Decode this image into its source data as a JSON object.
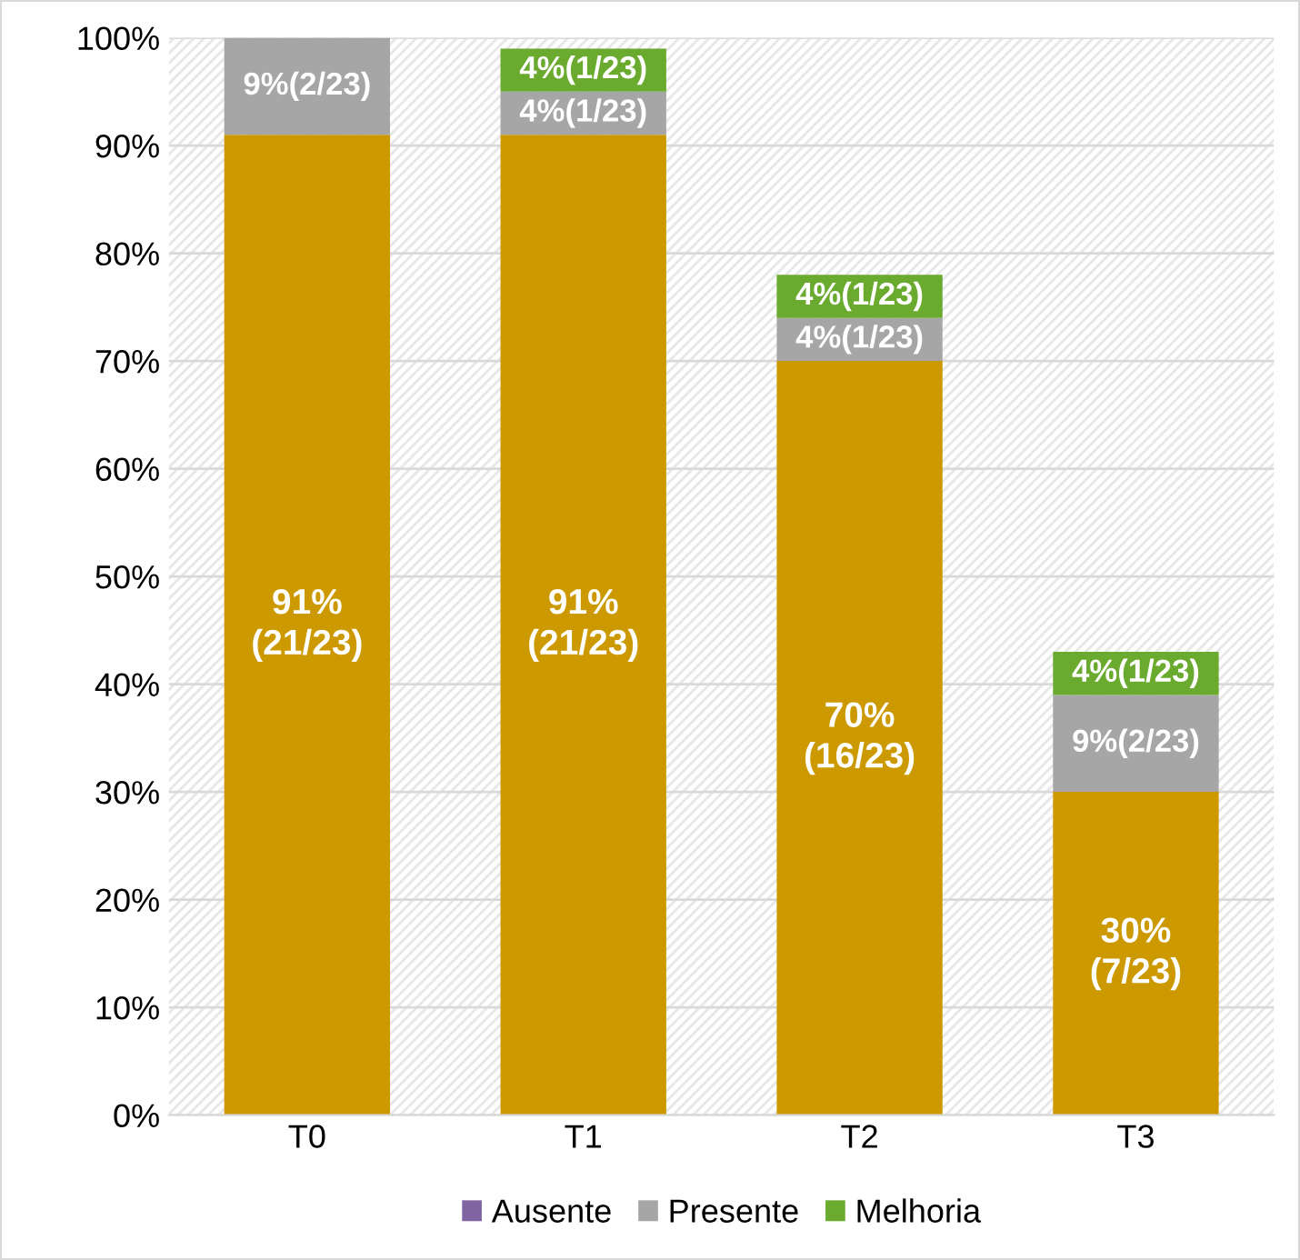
{
  "chart_data": {
    "type": "bar",
    "stacked": true,
    "categories": [
      "T0",
      "T1",
      "T2",
      "T3"
    ],
    "series": [
      {
        "color": "#cc9900",
        "values": [
          91,
          91,
          70,
          30
        ],
        "value_labels": [
          "91%\n(21/23)",
          "91%\n(21/23)",
          "70%\n(16/23)",
          "30%\n(7/23)"
        ]
      },
      {
        "name": "Ausente",
        "color": "#8064a2",
        "values": [
          0,
          0,
          0,
          0
        ]
      },
      {
        "name": "Presente",
        "color": "#a6a6a6",
        "values": [
          9,
          4,
          4,
          9
        ],
        "value_labels": [
          "9%(2/23)",
          "4%(1/23)",
          "4%(1/23)",
          "9%(2/23)"
        ]
      },
      {
        "name": "Melhoria",
        "color": "#6aaa2f",
        "values": [
          0,
          4,
          4,
          4
        ],
        "value_labels": [
          null,
          "4%(1/23)",
          "4%(1/23)",
          "4%(1/23)"
        ]
      }
    ],
    "ylim": [
      0,
      100
    ],
    "yticks": [
      {
        "value": 0,
        "label": "0%"
      },
      {
        "value": 10,
        "label": "10%"
      },
      {
        "value": 20,
        "label": "20%"
      },
      {
        "value": 30,
        "label": "30%"
      },
      {
        "value": 40,
        "label": "40%"
      },
      {
        "value": 50,
        "label": "50%"
      },
      {
        "value": 60,
        "label": "60%"
      },
      {
        "value": 70,
        "label": "70%"
      },
      {
        "value": 80,
        "label": "80%"
      },
      {
        "value": 90,
        "label": "90%"
      },
      {
        "value": 100,
        "label": "100%"
      }
    ],
    "grid": "y",
    "legend": "bottom"
  }
}
